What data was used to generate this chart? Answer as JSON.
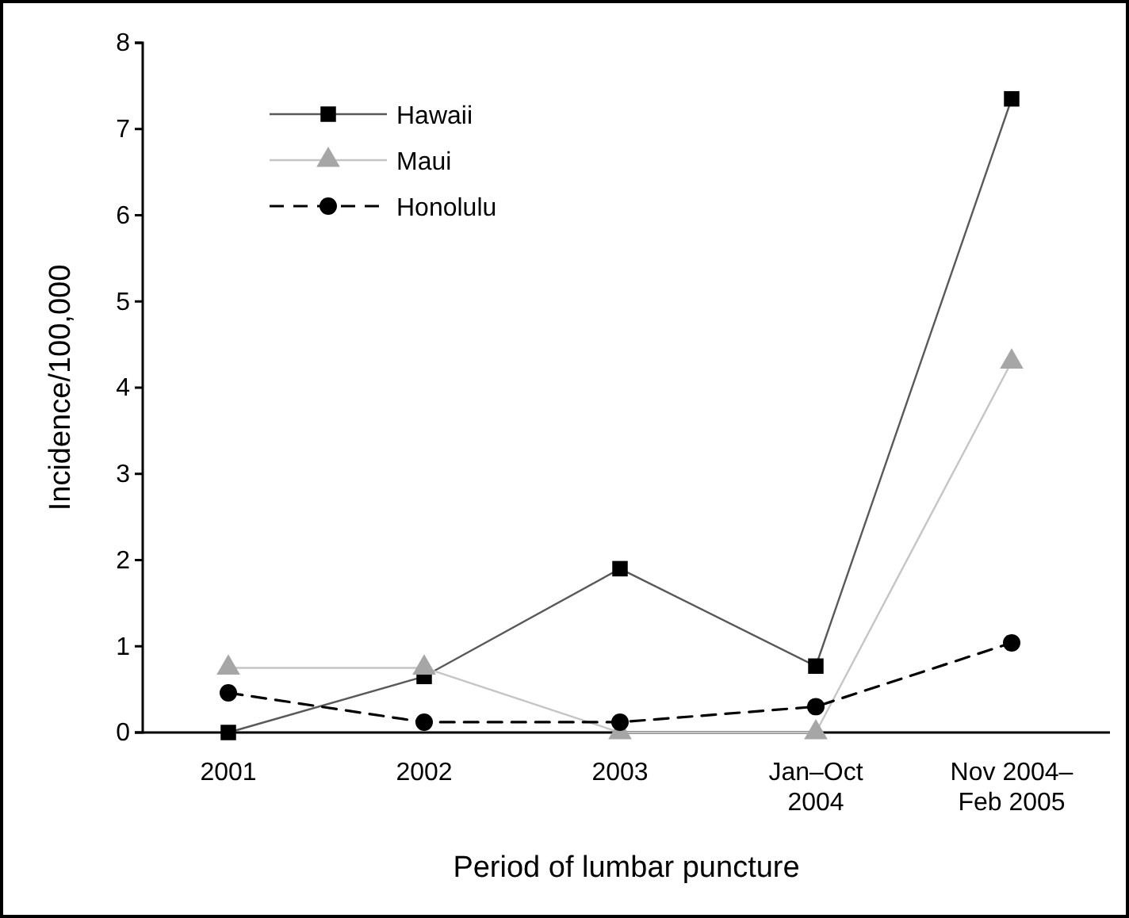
{
  "chart_data": {
    "type": "line",
    "xlabel": "Period of lumbar puncture",
    "ylabel": "Incidence/100,000",
    "categories": [
      "2001",
      "2002",
      "2003",
      "Jan–Oct\n2004",
      "Nov 2004–\nFeb 2005"
    ],
    "ylim": [
      0,
      8
    ],
    "yticks": [
      0,
      1,
      2,
      3,
      4,
      5,
      6,
      7,
      8
    ],
    "grid": false,
    "legend": "top left",
    "series": [
      {
        "name": "Hawaii",
        "color": "#000000",
        "marker": "square",
        "line_style": "solid",
        "values": [
          0,
          0.65,
          1.9,
          0.77,
          7.35
        ]
      },
      {
        "name": "Maui",
        "color": "#a6a6a6",
        "marker": "triangle",
        "line_style": "solid",
        "values": [
          0.75,
          0.75,
          0,
          0,
          4.3
        ]
      },
      {
        "name": "Honolulu",
        "color": "#000000",
        "marker": "circle",
        "line_style": "dashed",
        "values": [
          0.46,
          0.12,
          0.12,
          0.3,
          1.04
        ]
      }
    ]
  }
}
